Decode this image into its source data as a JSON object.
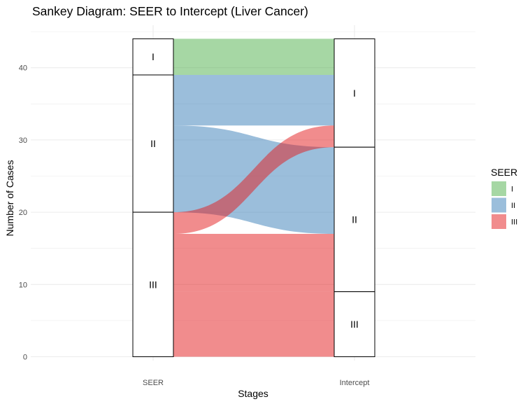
{
  "chart_data": {
    "type": "sankey",
    "title": "Sankey Diagram: SEER to Intercept (Liver Cancer)",
    "xlabel": "Stages",
    "ylabel": "Number of Cases",
    "axes": [
      "SEER",
      "Intercept"
    ],
    "ylim": [
      0,
      44
    ],
    "yticks": [
      0,
      10,
      20,
      30,
      40
    ],
    "grid": true,
    "legend": {
      "title": "SEER",
      "placement": "right",
      "items": [
        {
          "label": "I",
          "color": "#4daf4a"
        },
        {
          "label": "II",
          "color": "#377eb8"
        },
        {
          "label": "III",
          "color": "#e41a1c"
        }
      ]
    },
    "strata": {
      "SEER": [
        {
          "label": "I",
          "value": 5
        },
        {
          "label": "II",
          "value": 19
        },
        {
          "label": "III",
          "value": 20
        }
      ],
      "Intercept": [
        {
          "label": "I",
          "value": 15
        },
        {
          "label": "II",
          "value": 20
        },
        {
          "label": "III",
          "value": 9
        }
      ]
    },
    "flows": [
      {
        "from": "I",
        "to": "I",
        "value": 5
      },
      {
        "from": "II",
        "to": "I",
        "value": 7
      },
      {
        "from": "II",
        "to": "II",
        "value": 12
      },
      {
        "from": "III",
        "to": "I",
        "value": 3
      },
      {
        "from": "III",
        "to": "II",
        "value": 8
      },
      {
        "from": "III",
        "to": "III",
        "value": 9
      }
    ],
    "fill_opacity": 0.5
  }
}
